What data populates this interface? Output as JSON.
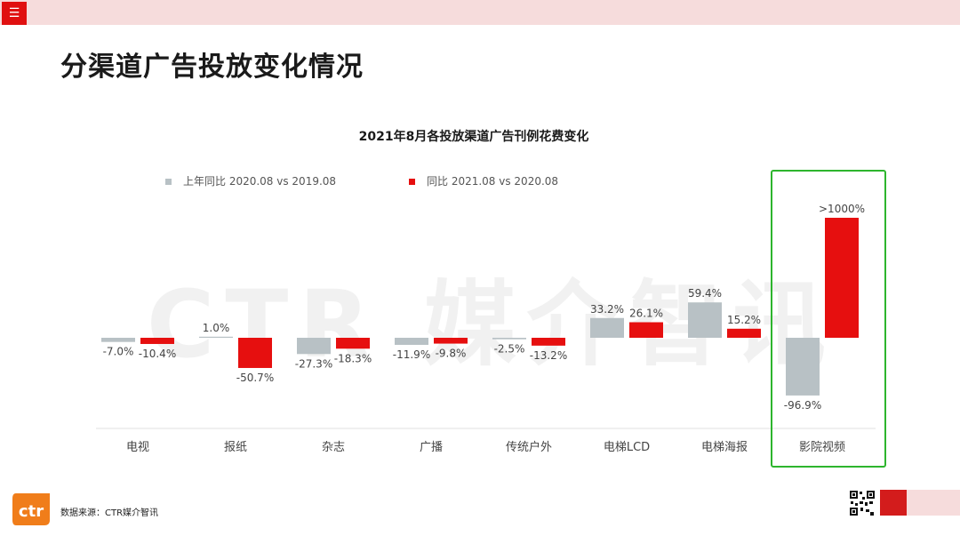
{
  "page": {
    "title": "分渠道广告投放变化情况",
    "watermark": "CTR 媒介智讯",
    "source": "数据来源：CTR媒介智讯",
    "logo_text": "ctr",
    "menu_icon": "☰"
  },
  "colors": {
    "prev_series": "#b8c1c5",
    "curr_series": "#e60f0f",
    "highlight_box": "#2db52d",
    "brand_orange": "#f07d1a",
    "brand_red": "#d31c1c"
  },
  "chart_data": {
    "type": "bar",
    "title": "2021年8月各投放渠道广告刊例花费变化",
    "categories": [
      "电视",
      "报纸",
      "杂志",
      "广播",
      "传统户外",
      "电梯LCD",
      "电梯海报",
      "影院视频"
    ],
    "series": [
      {
        "name": "上年同比 2020.08 vs 2019.08",
        "values": [
          -7.0,
          1.0,
          -27.3,
          -11.9,
          -2.5,
          33.2,
          59.4,
          -96.9
        ],
        "labels": [
          "-7.0%",
          "1.0%",
          "-27.3%",
          "-11.9%",
          "-2.5%",
          "33.2%",
          "59.4%",
          "-96.9%"
        ]
      },
      {
        "name": "同比 2021.08 vs 2020.08",
        "values": [
          -10.4,
          -50.7,
          -18.3,
          -9.8,
          -13.2,
          26.1,
          15.2,
          1000
        ],
        "labels": [
          "-10.4%",
          "-50.7%",
          "-18.3%",
          "-9.8%",
          "-13.2%",
          "26.1%",
          "15.2%",
          ">1000%"
        ]
      }
    ],
    "legend_position": "top",
    "grid": false,
    "highlighted_category": "影院视频",
    "note": ">1000% bar shown truncated (axis break)"
  }
}
